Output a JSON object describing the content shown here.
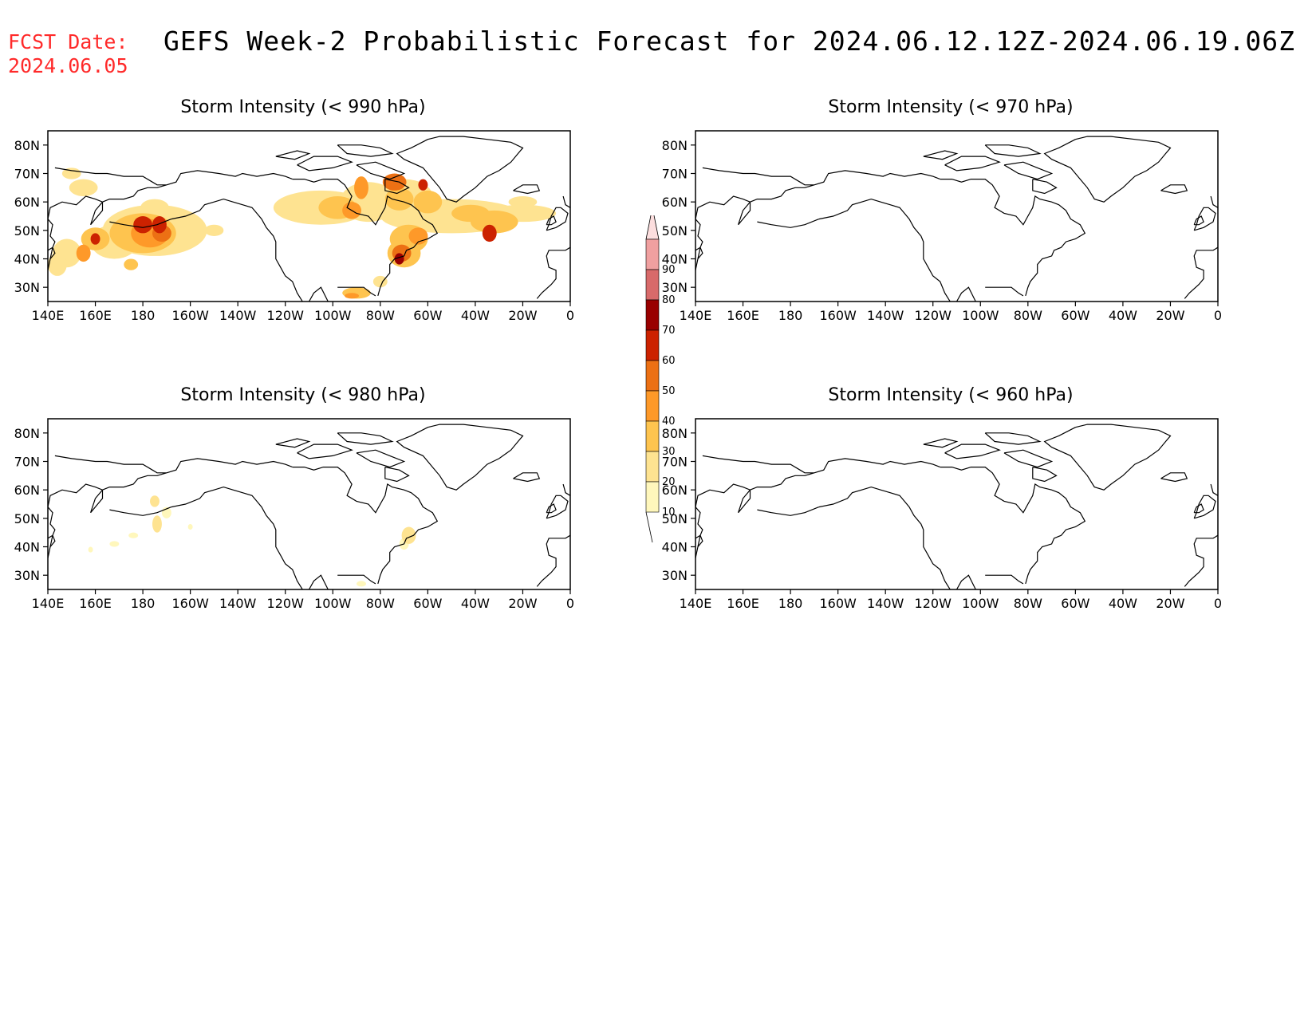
{
  "header": {
    "fcst_label": "FCST Date:",
    "fcst_date": "2024.06.05",
    "title": "GEFS Week-2 Probabilistic Forecast for 2024.06.12.12Z-2024.06.19.06Z"
  },
  "axes": {
    "lat_ticks": [
      "80N",
      "70N",
      "60N",
      "50N",
      "40N",
      "30N"
    ],
    "lon_ticks": [
      "140E",
      "160E",
      "180",
      "160W",
      "140W",
      "120W",
      "100W",
      "80W",
      "60W",
      "40W",
      "20W",
      "0"
    ]
  },
  "colorbar": {
    "levels": [
      "10",
      "20",
      "30",
      "40",
      "50",
      "60",
      "70",
      "80",
      "90"
    ],
    "colors": [
      "#fff7bc",
      "#fee391",
      "#fec44f",
      "#fe9929",
      "#ec7014",
      "#cc2200",
      "#990000",
      "#d86a6a",
      "#f0a0a0",
      "#fcdede"
    ]
  },
  "panels": [
    {
      "id": "p990",
      "title": "Storm Intensity (< 990 hPa)",
      "has_data": true
    },
    {
      "id": "p970",
      "title": "Storm Intensity (< 970 hPa)",
      "has_data": false
    },
    {
      "id": "p980",
      "title": "Storm Intensity (< 980 hPa)",
      "has_data": true
    },
    {
      "id": "p960",
      "title": "Storm Intensity (< 960 hPa)",
      "has_data": false
    }
  ]
}
